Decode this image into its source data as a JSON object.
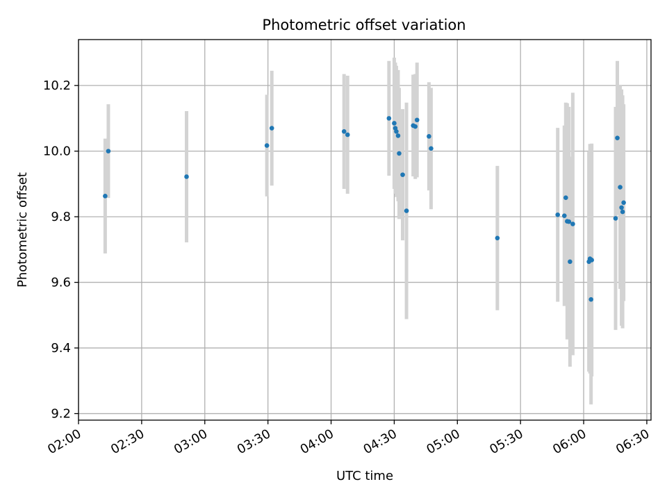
{
  "chart_data": {
    "type": "scatter",
    "title": "Photometric offset variation",
    "xlabel": "UTC time",
    "ylabel": "Photometric offset",
    "x_is_time": true,
    "xlim": [
      "02:00",
      "06:32"
    ],
    "ylim": [
      9.18,
      10.34
    ],
    "x_ticks": [
      "02:00",
      "02:30",
      "03:00",
      "03:30",
      "04:00",
      "04:30",
      "05:00",
      "05:30",
      "06:00",
      "06:30"
    ],
    "y_ticks": [
      9.2,
      9.4,
      9.6,
      9.8,
      10.0,
      10.2
    ],
    "grid": true,
    "point_color": "#1f77b4",
    "errorbar_color": "#d3d3d3",
    "points": [
      {
        "x": "02:12:40",
        "y": 9.863,
        "err": 0.175
      },
      {
        "x": "02:14:10",
        "y": 10.0,
        "err": 0.143
      },
      {
        "x": "02:51:20",
        "y": 9.922,
        "err": 0.2
      },
      {
        "x": "03:29:30",
        "y": 10.017,
        "err": 0.155
      },
      {
        "x": "03:31:50",
        "y": 10.07,
        "err": 0.175
      },
      {
        "x": "04:06:10",
        "y": 10.06,
        "err": 0.175
      },
      {
        "x": "04:07:50",
        "y": 10.05,
        "err": 0.18
      },
      {
        "x": "04:27:30",
        "y": 10.1,
        "err": 0.175
      },
      {
        "x": "04:30:00",
        "y": 10.085,
        "err": 0.2
      },
      {
        "x": "04:30:30",
        "y": 10.07,
        "err": 0.2
      },
      {
        "x": "04:31:00",
        "y": 10.06,
        "err": 0.2
      },
      {
        "x": "04:31:50",
        "y": 10.047,
        "err": 0.2
      },
      {
        "x": "04:32:20",
        "y": 9.993,
        "err": 0.2
      },
      {
        "x": "04:34:00",
        "y": 9.928,
        "err": 0.2
      },
      {
        "x": "04:35:50",
        "y": 9.818,
        "err": 0.33
      },
      {
        "x": "04:39:00",
        "y": 10.078,
        "err": 0.155
      },
      {
        "x": "04:40:00",
        "y": 10.075,
        "err": 0.16
      },
      {
        "x": "04:40:50",
        "y": 10.095,
        "err": 0.175
      },
      {
        "x": "04:46:30",
        "y": 10.045,
        "err": 0.165
      },
      {
        "x": "04:47:30",
        "y": 10.008,
        "err": 0.185
      },
      {
        "x": "05:19:00",
        "y": 9.735,
        "err": 0.22
      },
      {
        "x": "05:47:40",
        "y": 9.806,
        "err": 0.265
      },
      {
        "x": "05:50:50",
        "y": 9.803,
        "err": 0.275
      },
      {
        "x": "05:51:30",
        "y": 9.858,
        "err": 0.29
      },
      {
        "x": "05:52:10",
        "y": 9.786,
        "err": 0.36
      },
      {
        "x": "05:53:00",
        "y": 9.785,
        "err": 0.35
      },
      {
        "x": "05:53:30",
        "y": 9.663,
        "err": 0.32
      },
      {
        "x": "05:54:50",
        "y": 9.778,
        "err": 0.4
      },
      {
        "x": "06:02:30",
        "y": 9.663,
        "err": 0.335
      },
      {
        "x": "06:03:00",
        "y": 9.672,
        "err": 0.35
      },
      {
        "x": "06:03:30",
        "y": 9.548,
        "err": 0.32
      },
      {
        "x": "06:03:50",
        "y": 9.668,
        "err": 0.355
      },
      {
        "x": "06:15:10",
        "y": 9.795,
        "err": 0.34
      },
      {
        "x": "06:16:00",
        "y": 10.04,
        "err": 0.235
      },
      {
        "x": "06:17:20",
        "y": 9.89,
        "err": 0.31
      },
      {
        "x": "06:18:00",
        "y": 9.828,
        "err": 0.36
      },
      {
        "x": "06:18:30",
        "y": 9.815,
        "err": 0.355
      },
      {
        "x": "06:19:00",
        "y": 9.843,
        "err": 0.3
      }
    ]
  }
}
